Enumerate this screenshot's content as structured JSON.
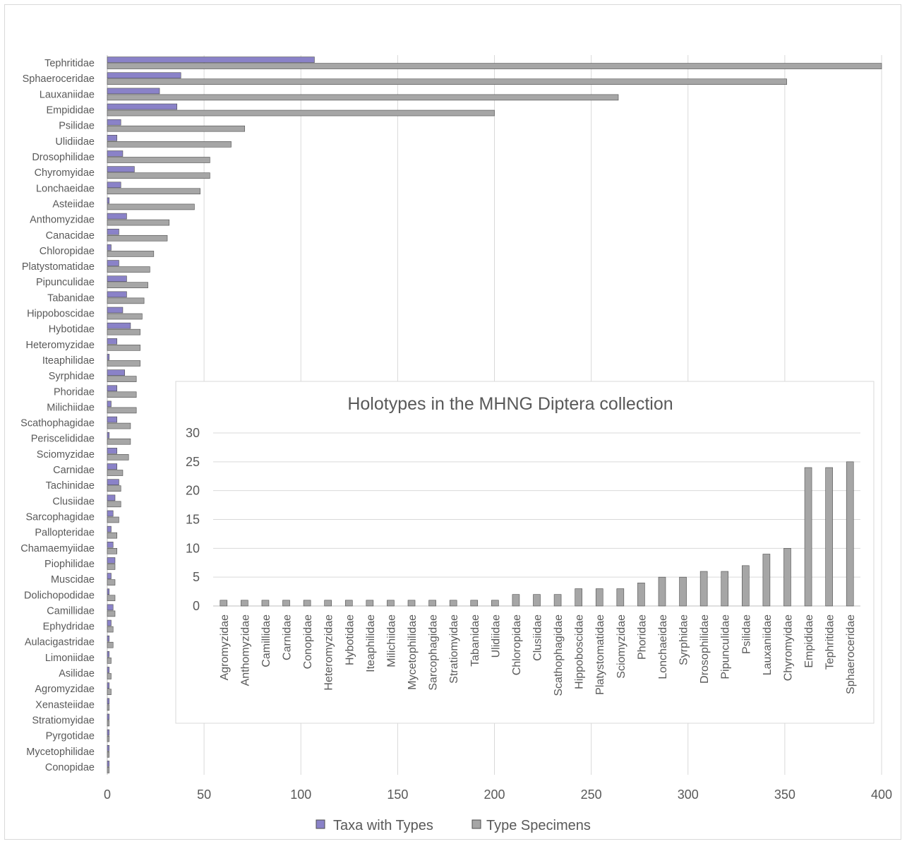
{
  "colors": {
    "taxa": "#8a82c8",
    "specimens": "#a6a6a6",
    "bar_stroke": "#4d4d4d",
    "grid": "#d9d9d9",
    "text": "#595959"
  },
  "chart_data": [
    {
      "type": "bar",
      "orientation": "horizontal",
      "title": "",
      "categories": [
        "Tephritidae",
        "Sphaeroceridae",
        "Lauxaniidae",
        "Empididae",
        "Psilidae",
        "Ulidiidae",
        "Drosophilidae",
        "Chyromyidae",
        "Lonchaeidae",
        "Asteiidae",
        "Anthomyzidae",
        "Canacidae",
        "Chloropidae",
        "Platystomatidae",
        "Pipunculidae",
        "Tabanidae",
        "Hippoboscidae",
        "Hybotidae",
        "Heteromyzidae",
        "Iteaphilidae",
        "Syrphidae",
        "Phoridae",
        "Milichiidae",
        "Scathophagidae",
        "Periscelididae",
        "Sciomyzidae",
        "Carnidae",
        "Tachinidae",
        "Clusiidae",
        "Sarcophagidae",
        "Pallopteridae",
        "Chamaemyiidae",
        "Piophilidae",
        "Muscidae",
        "Dolichopodidae",
        "Camillidae",
        "Ephydridae",
        "Aulacigastridae",
        "Limoniidae",
        "Asilidae",
        "Agromyzidae",
        "Xenasteiidae",
        "Stratiomyidae",
        "Pyrgotidae",
        "Mycetophilidae",
        "Conopidae"
      ],
      "series": [
        {
          "name": "Taxa with Types",
          "values": [
            107,
            38,
            27,
            36,
            7,
            5,
            8,
            14,
            7,
            1,
            10,
            6,
            2,
            6,
            10,
            10,
            8,
            12,
            5,
            1,
            9,
            5,
            2,
            5,
            1,
            5,
            5,
            6,
            4,
            3,
            2,
            3,
            4,
            2,
            1,
            3,
            2,
            1,
            1,
            1,
            1,
            1,
            1,
            1,
            1,
            1
          ]
        },
        {
          "name": "Type Specimens",
          "values": [
            400,
            351,
            264,
            200,
            71,
            64,
            53,
            53,
            48,
            45,
            32,
            31,
            24,
            22,
            21,
            19,
            18,
            17,
            17,
            17,
            15,
            15,
            15,
            12,
            12,
            11,
            8,
            7,
            7,
            6,
            5,
            5,
            4,
            4,
            4,
            4,
            3,
            3,
            2,
            2,
            2,
            1,
            1,
            1,
            1,
            1
          ]
        }
      ],
      "xlim": [
        0,
        400
      ],
      "xticks": [
        "0",
        "50",
        "100",
        "150",
        "200",
        "250",
        "300",
        "350",
        "400"
      ],
      "grid": true,
      "legend": "bottom"
    },
    {
      "type": "bar",
      "title": "Holotypes in the MHNG Diptera collection",
      "categories": [
        "Agromyzidae",
        "Anthomyzidae",
        "Camillidae",
        "Carnidae",
        "Conopidae",
        "Heteromyzidae",
        "Hybotidae",
        "Iteaphilidae",
        "Milichiidae",
        "Mycetophilidae",
        "Sarcophagidae",
        "Stratiomyidae",
        "Tabanidae",
        "Ulidiidae",
        "Chloropidae",
        "Clusiidae",
        "Scathophagidae",
        "Hippoboscidae",
        "Platystomatidae",
        "Sciomyzidae",
        "Phoridae",
        "Lonchaeidae",
        "Syrphidae",
        "Drosophilidae",
        "Pipunculidae",
        "Psilidae",
        "Lauxaniidae",
        "Chyromyidae",
        "Empididae",
        "Tephritidae",
        "Sphaeroceridae"
      ],
      "values": [
        1,
        1,
        1,
        1,
        1,
        1,
        1,
        1,
        1,
        1,
        1,
        1,
        1,
        1,
        2,
        2,
        2,
        3,
        3,
        3,
        4,
        5,
        5,
        6,
        6,
        7,
        9,
        10,
        24,
        24,
        25
      ],
      "ylim": [
        0,
        30
      ],
      "yticks": [
        "0",
        "5",
        "10",
        "15",
        "20",
        "25",
        "30"
      ],
      "grid": true
    }
  ]
}
